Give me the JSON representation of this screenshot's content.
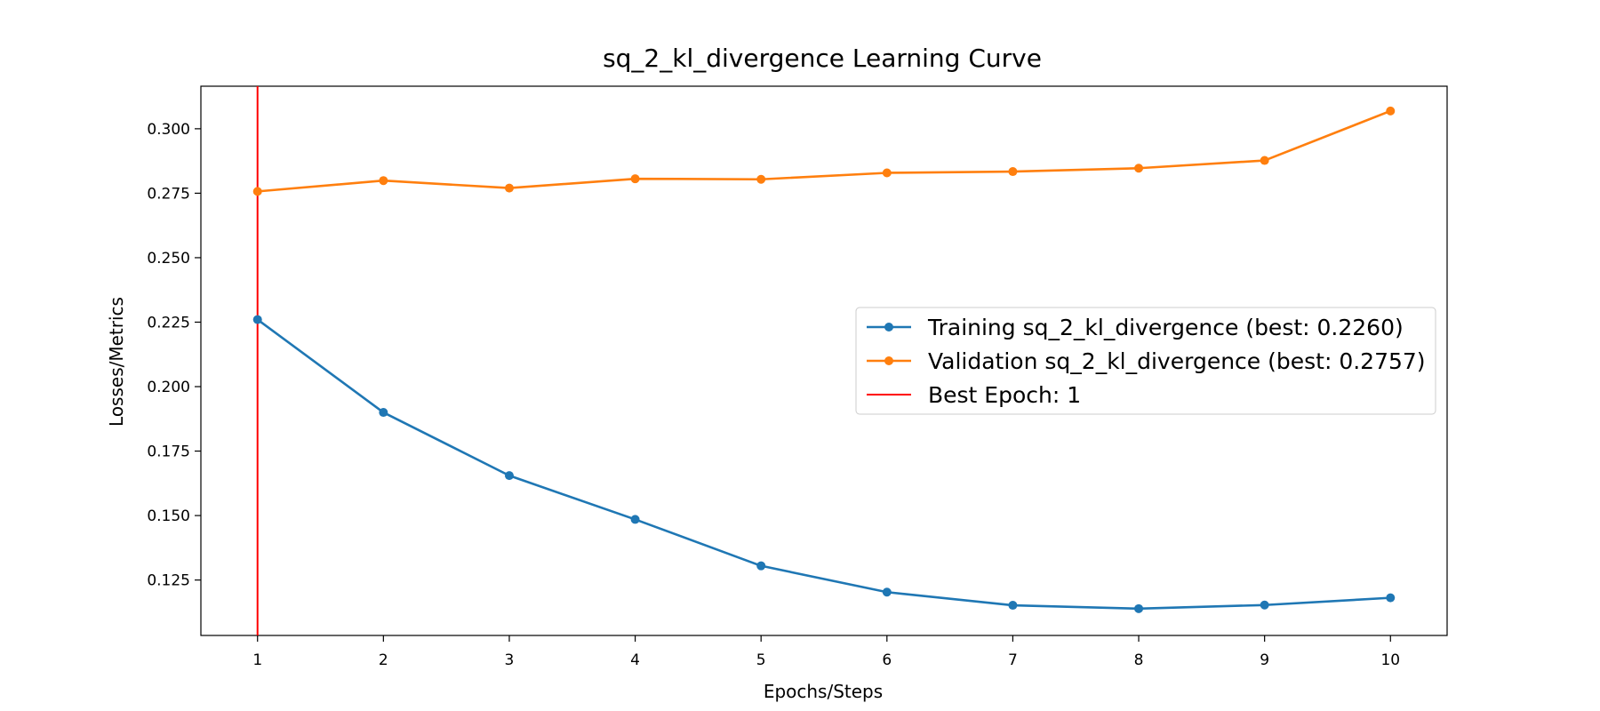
{
  "chart_data": {
    "type": "line",
    "title": "sq_2_kl_divergence Learning Curve",
    "xlabel": "Epochs/Steps",
    "ylabel": "Losses/Metrics",
    "x": [
      1,
      2,
      3,
      4,
      5,
      6,
      7,
      8,
      9,
      10
    ],
    "xlim": [
      0.55,
      10.45
    ],
    "ylim": [
      0.1035,
      0.3165
    ],
    "yticks": [
      "0.125",
      "0.150",
      "0.175",
      "0.200",
      "0.225",
      "0.250",
      "0.275",
      "0.300"
    ],
    "xticks": [
      "1",
      "2",
      "3",
      "4",
      "5",
      "6",
      "7",
      "8",
      "9",
      "10"
    ],
    "grid": false,
    "legend_position": "center-right",
    "series": [
      {
        "name": "Training sq_2_kl_divergence (best: 0.2260)",
        "color": "#1f77b4",
        "values": [
          0.226,
          0.19,
          0.1655,
          0.1485,
          0.1305,
          0.1203,
          0.1152,
          0.1139,
          0.1153,
          0.1181
        ]
      },
      {
        "name": "Validation sq_2_kl_divergence (best: 0.2757)",
        "color": "#ff7f0e",
        "values": [
          0.2757,
          0.2799,
          0.277,
          0.2806,
          0.2804,
          0.2829,
          0.2834,
          0.2847,
          0.2877,
          0.3069
        ]
      }
    ],
    "best_epoch": {
      "label": "Best Epoch: 1",
      "x": 1,
      "color": "#ff0000"
    }
  }
}
